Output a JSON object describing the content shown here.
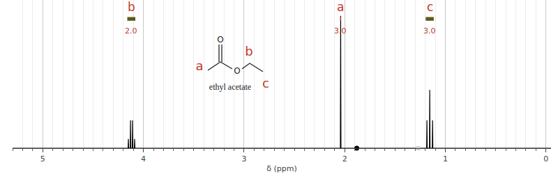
{
  "chart_data": {
    "type": "line",
    "x_label": "δ (ppm)",
    "xlim": [
      5.3,
      -0.05
    ],
    "xticks": [
      5,
      4,
      3,
      2,
      1,
      0
    ],
    "ylim": [
      0,
      112
    ],
    "grid": true,
    "tick_labels": "x",
    "color": "#000000",
    "x": [
      5.3,
      4.152,
      4.149,
      4.146,
      4.131,
      4.128,
      4.125,
      4.111,
      4.108,
      4.105,
      4.09,
      4.087,
      4.084,
      2.043,
      2.04,
      2.037,
      1.186,
      1.183,
      1.18,
      1.158,
      1.155,
      1.152,
      1.13,
      1.127,
      1.124,
      -0.05
    ],
    "values": [
      0,
      0,
      7,
      0,
      0,
      21,
      0,
      0,
      21,
      0,
      0,
      7,
      0,
      0,
      100,
      0,
      0,
      21,
      0,
      0,
      44,
      0,
      0,
      21,
      0,
      0
    ],
    "peak_labels": [
      {
        "text": "b",
        "x": 4.12,
        "color": "#c0392b"
      },
      {
        "text": "a",
        "x": 2.04,
        "color": "#c0392b"
      },
      {
        "text": "c",
        "x": 1.155,
        "color": "#c0392b"
      }
    ],
    "integrals": [
      {
        "value": 2,
        "label": "2.0",
        "from": 4.16,
        "to": 4.08,
        "color": "#5b5b1a"
      },
      {
        "value": 3,
        "label": "3.0",
        "from": 2.045,
        "to": 2.035,
        "color": "#c0392b"
      },
      {
        "value": 3,
        "label": "3.0",
        "from": 1.195,
        "to": 1.115,
        "color": "#5b5b1a"
      }
    ],
    "markers": [
      {
        "x": 1.88,
        "color": "#000000",
        "marker": "circle"
      },
      {
        "x": 1.27,
        "color": "#d0d0d0",
        "marker": "square"
      }
    ],
    "structure": {
      "name": "ethyl acetate",
      "atoms": [
        "O",
        "O"
      ],
      "labels": [
        {
          "text": "a",
          "color": "#c0392b"
        },
        {
          "text": "b",
          "color": "#c0392b"
        },
        {
          "text": "c",
          "color": "#c0392b"
        }
      ]
    }
  }
}
